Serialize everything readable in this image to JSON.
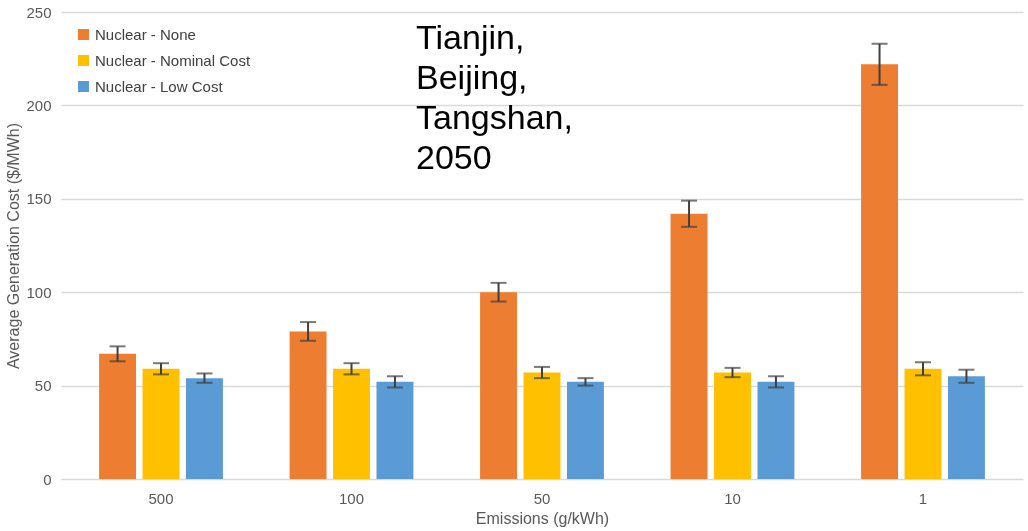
{
  "chart_data": {
    "type": "bar",
    "xlabel": "Emissions (g/kWh)",
    "ylabel": "Average Generation Cost ($/MWh)",
    "categories": [
      "500",
      "100",
      "50",
      "10",
      "1"
    ],
    "series": [
      {
        "name": "Nuclear - None",
        "color": "#ed7d31",
        "values": [
          67,
          79,
          100,
          142,
          222
        ],
        "errors": [
          4,
          5,
          5,
          7,
          11
        ]
      },
      {
        "name": "Nuclear - Nominal Cost",
        "color": "#ffc000",
        "values": [
          59,
          59,
          57,
          57,
          59
        ],
        "errors": [
          3,
          3,
          3,
          2.5,
          3.5
        ]
      },
      {
        "name": "Nuclear - Low Cost",
        "color": "#5b9bd5",
        "values": [
          54,
          52,
          52,
          52,
          55
        ],
        "errors": [
          2.5,
          3,
          2,
          3,
          3.5
        ]
      }
    ],
    "ylim": [
      0,
      250
    ],
    "yticks": [
      0,
      50,
      100,
      150,
      200,
      250
    ],
    "grid": "y",
    "legend": "top left",
    "annotations": [
      "Tianjin,\nBeijing,\nTangshan,\n2050"
    ]
  }
}
